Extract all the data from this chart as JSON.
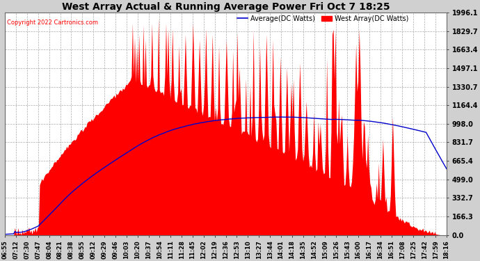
{
  "title": "West Array Actual & Running Average Power Fri Oct 7 18:25",
  "copyright": "Copyright 2022 Cartronics.com",
  "legend_avg": "Average(DC Watts)",
  "legend_west": "West Array(DC Watts)",
  "ymax": 1996.1,
  "yticks": [
    0.0,
    166.3,
    332.7,
    499.0,
    665.4,
    831.7,
    998.0,
    1164.4,
    1330.7,
    1497.1,
    1663.4,
    1829.7,
    1996.1
  ],
  "ytick_labels": [
    "0.0",
    "166.3",
    "332.7",
    "499.0",
    "665.4",
    "831.7",
    "998.0",
    "1164.4",
    "1330.7",
    "1497.1",
    "1663.4",
    "1829.7",
    "1996.1"
  ],
  "bg_color": "#d0d0d0",
  "plot_bg_color": "#ffffff",
  "bar_color": "#ff0000",
  "avg_line_color": "#0000cc",
  "title_color": "#000000",
  "copyright_color": "#ff0000",
  "grid_color": "#aaaaaa",
  "xtick_labels": [
    "06:55",
    "07:12",
    "07:30",
    "07:47",
    "08:04",
    "08:21",
    "08:38",
    "08:55",
    "09:12",
    "09:29",
    "09:46",
    "10:03",
    "10:20",
    "10:37",
    "10:54",
    "11:11",
    "11:28",
    "11:45",
    "12:02",
    "12:19",
    "12:36",
    "12:53",
    "13:10",
    "13:27",
    "13:44",
    "14:01",
    "14:18",
    "14:35",
    "14:52",
    "15:09",
    "15:26",
    "15:43",
    "16:00",
    "16:17",
    "16:34",
    "16:51",
    "17:08",
    "17:25",
    "17:42",
    "17:59",
    "18:16"
  ]
}
